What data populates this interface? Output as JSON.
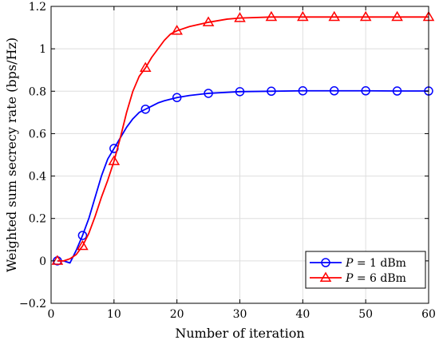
{
  "chart_data": {
    "type": "line",
    "title": "",
    "xlabel": "Number of iteration",
    "ylabel": "Weighted sum secrecy rate (bps/Hz)",
    "xlim": [
      0,
      60
    ],
    "ylim": [
      -0.2,
      1.2
    ],
    "xticks": [
      0,
      10,
      20,
      30,
      40,
      50,
      60
    ],
    "yticks": [
      -0.2,
      0,
      0.2,
      0.4,
      0.6,
      0.8,
      1,
      1.2
    ],
    "xtick_labels": [
      "0",
      "10",
      "20",
      "30",
      "40",
      "50",
      "60"
    ],
    "ytick_labels": [
      "−0.2",
      "0",
      "0.2",
      "0.4",
      "0.6",
      "0.8",
      "1",
      "1.2"
    ],
    "grid": true,
    "legend_position": "bottom-right",
    "series": [
      {
        "name": "P = 1 dBm",
        "legend_var": "P",
        "legend_rest": " = 1 dBm",
        "color": "#0000ff",
        "marker": "circle",
        "curve_x": [
          1,
          2,
          3,
          4,
          5,
          6,
          7,
          8,
          9,
          10,
          11,
          12,
          13,
          14,
          15,
          16,
          17,
          18,
          20,
          22,
          25,
          30,
          35,
          40,
          45,
          50,
          55,
          60
        ],
        "curve_y": [
          0.0,
          0.0,
          -0.01,
          0.05,
          0.12,
          0.2,
          0.3,
          0.4,
          0.48,
          0.53,
          0.58,
          0.63,
          0.67,
          0.7,
          0.715,
          0.73,
          0.745,
          0.755,
          0.77,
          0.78,
          0.79,
          0.798,
          0.8,
          0.802,
          0.802,
          0.802,
          0.801,
          0.801
        ],
        "marker_x": [
          1,
          5,
          10,
          15,
          20,
          25,
          30,
          35,
          40,
          45,
          50,
          55,
          60
        ],
        "marker_y": [
          0.0,
          0.12,
          0.53,
          0.715,
          0.77,
          0.79,
          0.798,
          0.8,
          0.802,
          0.802,
          0.802,
          0.801,
          0.801
        ]
      },
      {
        "name": "P = 6 dBm",
        "legend_var": "P",
        "legend_rest": " = 6 dBm",
        "color": "#ff0000",
        "marker": "triangle",
        "curve_x": [
          1,
          2,
          3,
          4,
          5,
          6,
          7,
          8,
          9,
          10,
          11,
          12,
          13,
          14,
          15,
          16,
          17,
          18,
          19,
          20,
          22,
          25,
          28,
          30,
          35,
          40,
          45,
          50,
          55,
          60
        ],
        "curve_y": [
          0.0,
          0.0,
          0.01,
          0.03,
          0.07,
          0.13,
          0.21,
          0.3,
          0.38,
          0.47,
          0.58,
          0.7,
          0.8,
          0.87,
          0.91,
          0.96,
          1.0,
          1.04,
          1.07,
          1.085,
          1.105,
          1.125,
          1.14,
          1.145,
          1.15,
          1.15,
          1.15,
          1.15,
          1.15,
          1.15
        ],
        "marker_x": [
          1,
          5,
          10,
          15,
          20,
          25,
          30,
          35,
          40,
          45,
          50,
          55,
          60
        ],
        "marker_y": [
          0.0,
          0.07,
          0.47,
          0.91,
          1.085,
          1.125,
          1.145,
          1.15,
          1.15,
          1.15,
          1.15,
          1.15,
          1.15
        ]
      }
    ]
  }
}
